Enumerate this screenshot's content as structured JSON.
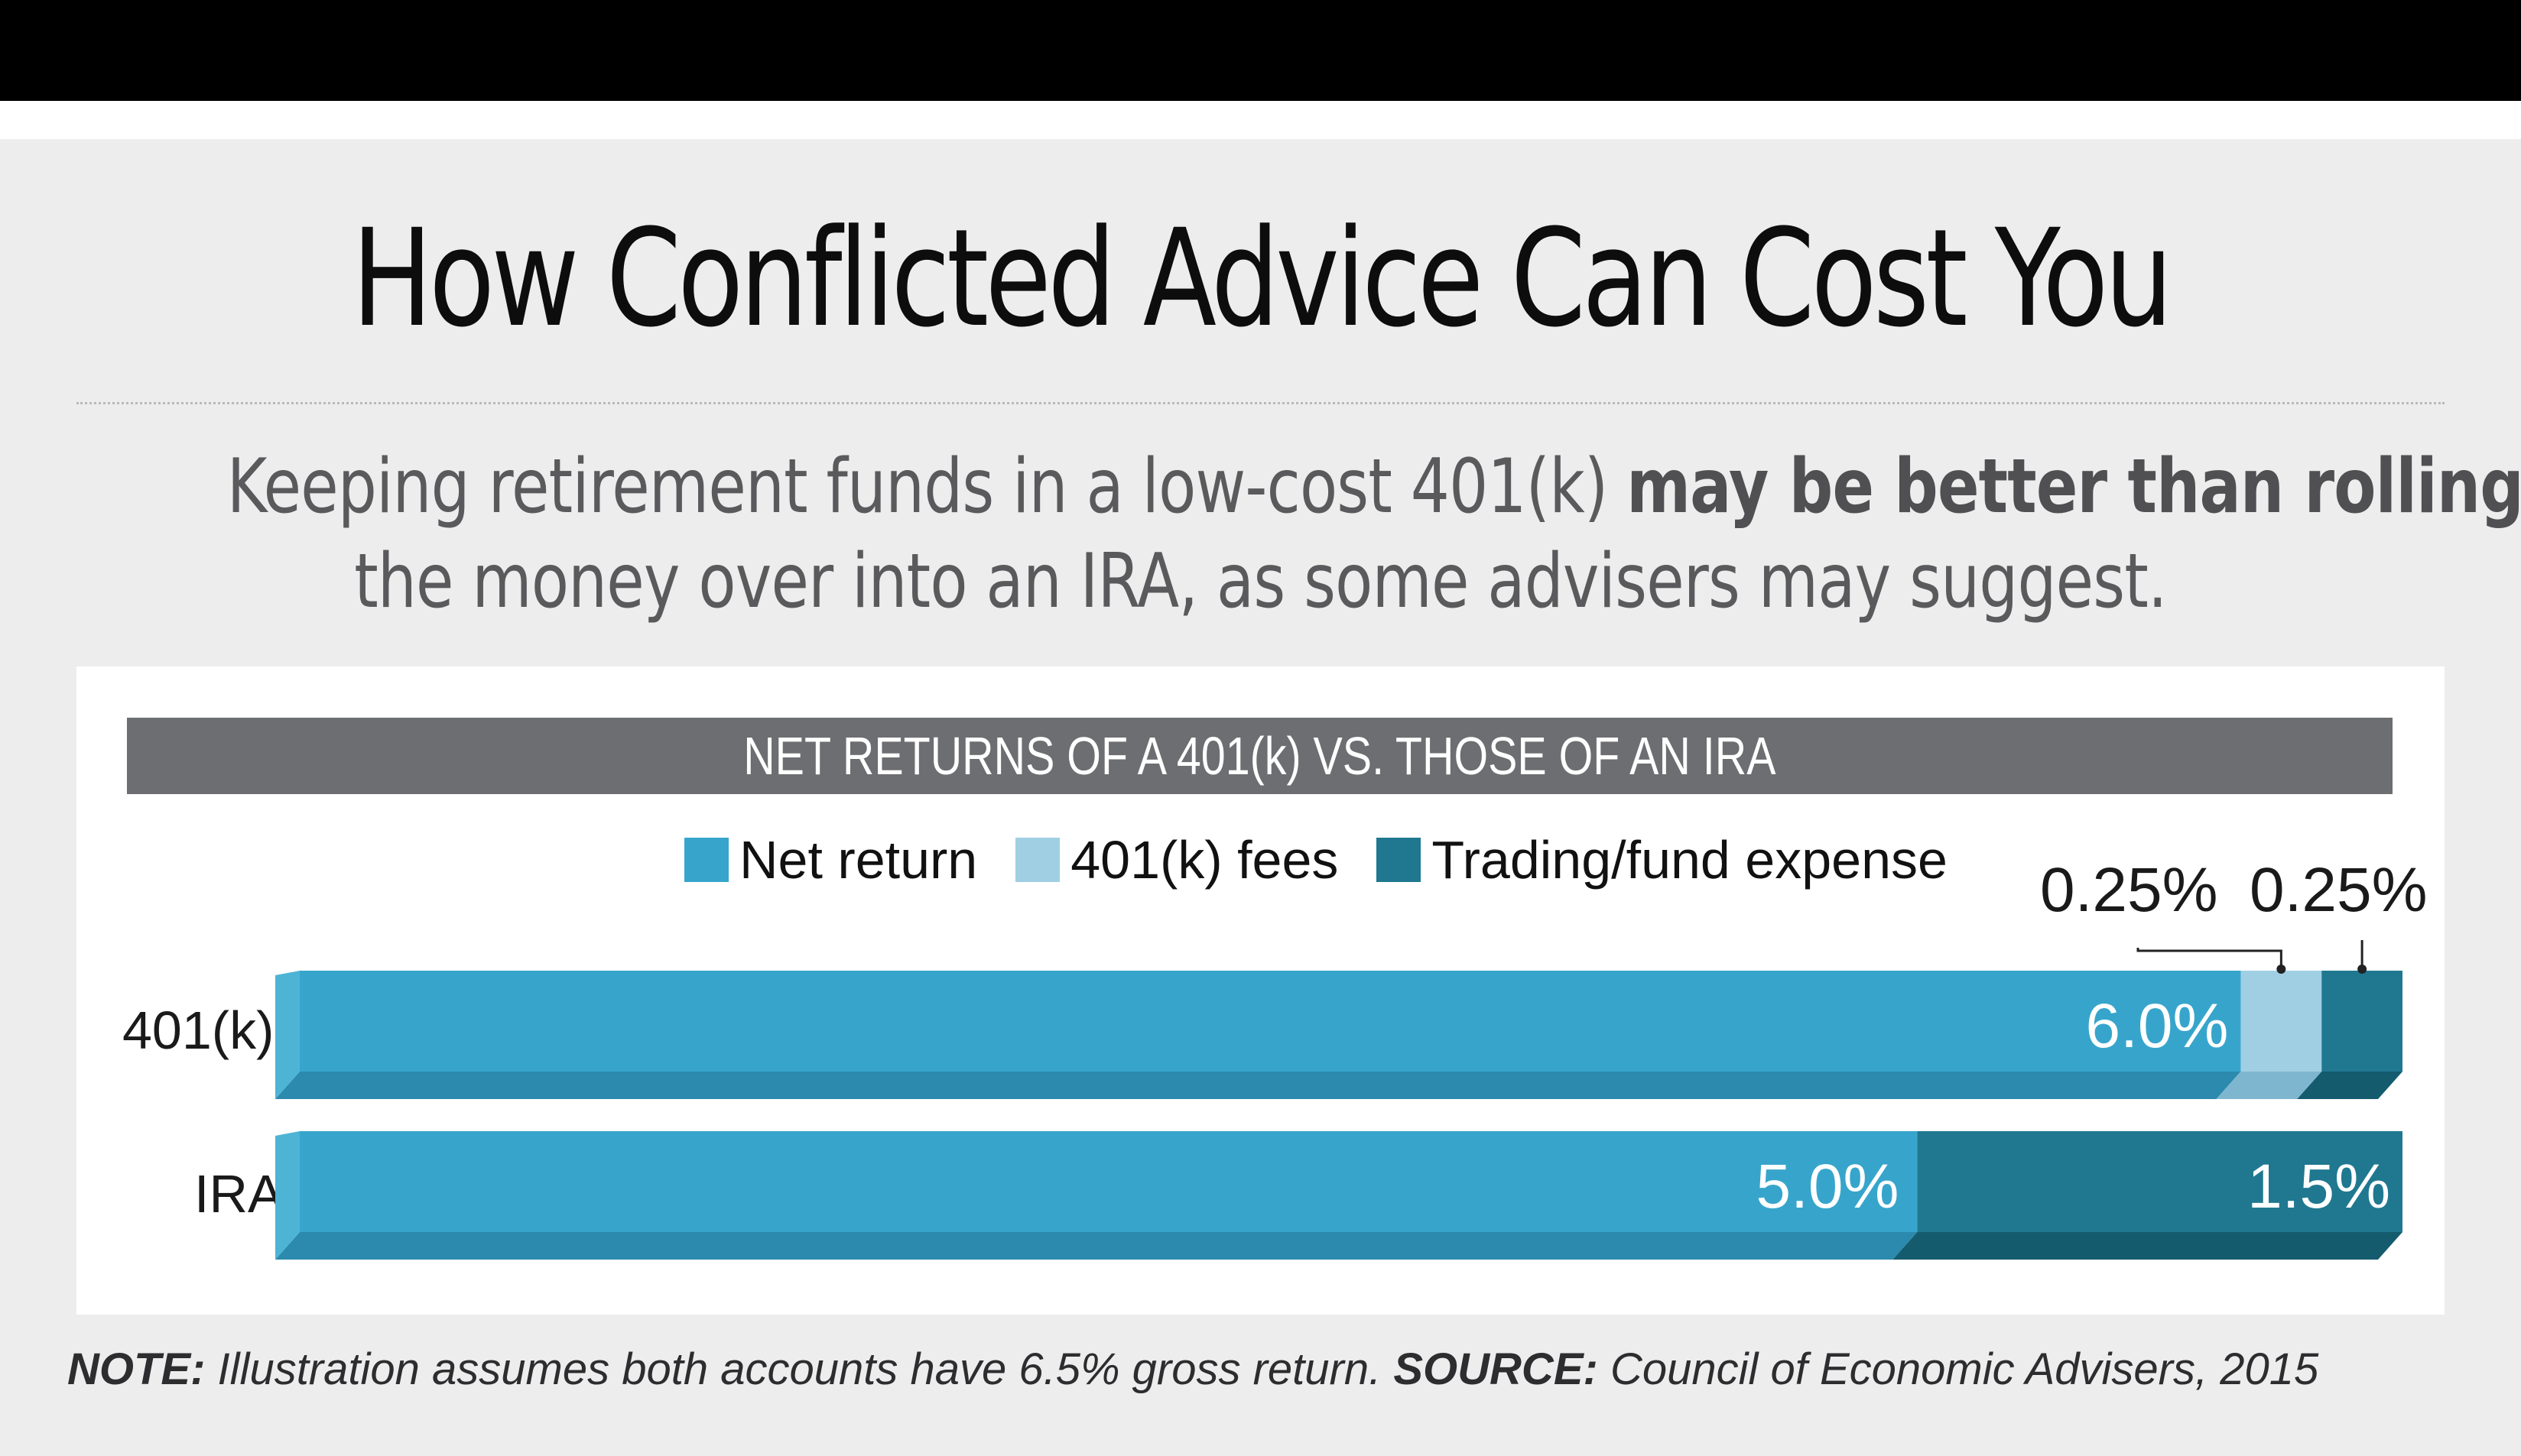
{
  "title": "How Conflicted Advice Can Cost You",
  "subtitle": {
    "line1_plain": "Keeping retirement funds in a low-cost 401(k) ",
    "line1_bold": "may be better than rolling",
    "line2": "the money over into an IRA, as some advisers may suggest."
  },
  "colors": {
    "net_return": "#37a5cb",
    "fees_401k": "#a0cfe4",
    "trading_expense": "#1f7890",
    "header_bar": "#6d6e71"
  },
  "footer": {
    "note_label": "NOTE:",
    "note_text": " Illustration assumes both accounts have 6.5% gross return. ",
    "source_label": "SOURCE:",
    "source_text": " Council of Economic Advisers, 2015"
  },
  "chart_data": {
    "type": "bar",
    "orientation": "horizontal",
    "stacked": true,
    "title": "NET RETURNS OF A 401(k) VS. THOSE OF AN IRA",
    "categories": [
      "401(k)",
      "IRA"
    ],
    "series": [
      {
        "name": "Net return",
        "values": [
          6.0,
          5.0
        ],
        "labels": [
          "6.0%",
          "5.0%"
        ]
      },
      {
        "name": "401(k) fees",
        "values": [
          0.25,
          0
        ],
        "labels": [
          "0.25%",
          ""
        ]
      },
      {
        "name": "Trading/fund expense",
        "values": [
          0.25,
          1.5
        ],
        "labels": [
          "0.25%",
          "1.5%"
        ]
      }
    ],
    "xlim": [
      0,
      6.5
    ],
    "legend_position": "top",
    "grid": false,
    "callouts": [
      "0.25%",
      "0.25%"
    ]
  }
}
